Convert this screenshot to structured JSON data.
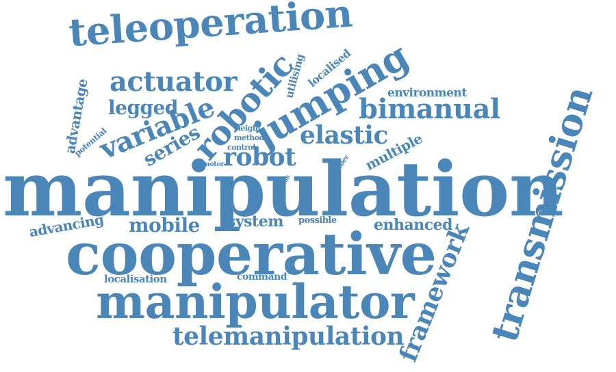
{
  "cloud": {
    "color": "#4a86b8",
    "words": [
      "manipulation",
      "cooperative",
      "manipulator",
      "teleoperation",
      "transmission",
      "jumping",
      "robotic",
      "actuator",
      "variable",
      "bimanual",
      "elastic",
      "robot",
      "legged",
      "series",
      "telemanipulation",
      "framework",
      "mobile",
      "system",
      "enhanced",
      "advancing",
      "advantage",
      "multiple",
      "environment",
      "localised",
      "utilising",
      "localisation",
      "command",
      "possible",
      "potential",
      "height",
      "method",
      "control",
      "motor",
      "number",
      "peak"
    ]
  }
}
